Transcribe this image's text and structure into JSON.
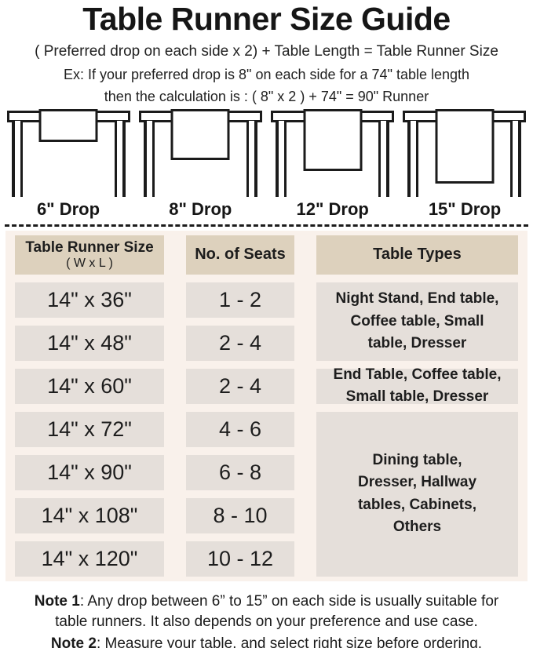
{
  "title": "Table Runner Size Guide",
  "formula": "( Preferred drop on each side x 2) + Table Length = Table Runner Size",
  "example": {
    "line1": "Ex: If your preferred drop is 8\" on each side for a 74\" table length",
    "line2": "then the calculation is : ( 8\" x 2 ) + 74\" = 90\" Runner"
  },
  "diagrams": [
    {
      "label": "6\" Drop"
    },
    {
      "label": "8\" Drop"
    },
    {
      "label": "12\" Drop"
    },
    {
      "label": "15\" Drop"
    }
  ],
  "table": {
    "headers": {
      "size_line1": "Table Runner Size",
      "size_line2": "( W x L )",
      "seats": "No. of Seats",
      "types": "Table Types"
    },
    "rows": [
      {
        "size": "14\" x 36\"",
        "seats": "1 - 2"
      },
      {
        "size": "14\" x 48\"",
        "seats": "2 - 4"
      },
      {
        "size": "14\" x 60\"",
        "seats": "2 - 4"
      },
      {
        "size": "14\" x 72\"",
        "seats": "4 - 6"
      },
      {
        "size": "14\" x 90\"",
        "seats": "6 - 8"
      },
      {
        "size": "14\" x 108\"",
        "seats": "8 - 10"
      },
      {
        "size": "14\" x 120\"",
        "seats": "10 - 12"
      }
    ],
    "type_groups": [
      {
        "text": "Night Stand, End table,\nCoffee table, Small\ntable, Dresser"
      },
      {
        "text": "End Table, Coffee table,\nSmall table, Dresser"
      },
      {
        "text": "Dining table,\nDresser, Hallway\ntables, Cabinets,\nOthers"
      }
    ]
  },
  "notes": [
    {
      "label": "Note 1",
      "text": ": Any drop between 6” to 15” on each side is usually suitable for\ntable runners. It also depends on your preference and use case."
    },
    {
      "label": "Note 2",
      "text": ": Measure your table, and select right size before ordering."
    }
  ],
  "colors": {
    "header_bg": "#ddd1bd",
    "cell_bg": "#e5dfda",
    "table_bg": "#f9f1eb",
    "text": "#1d1d1d"
  }
}
